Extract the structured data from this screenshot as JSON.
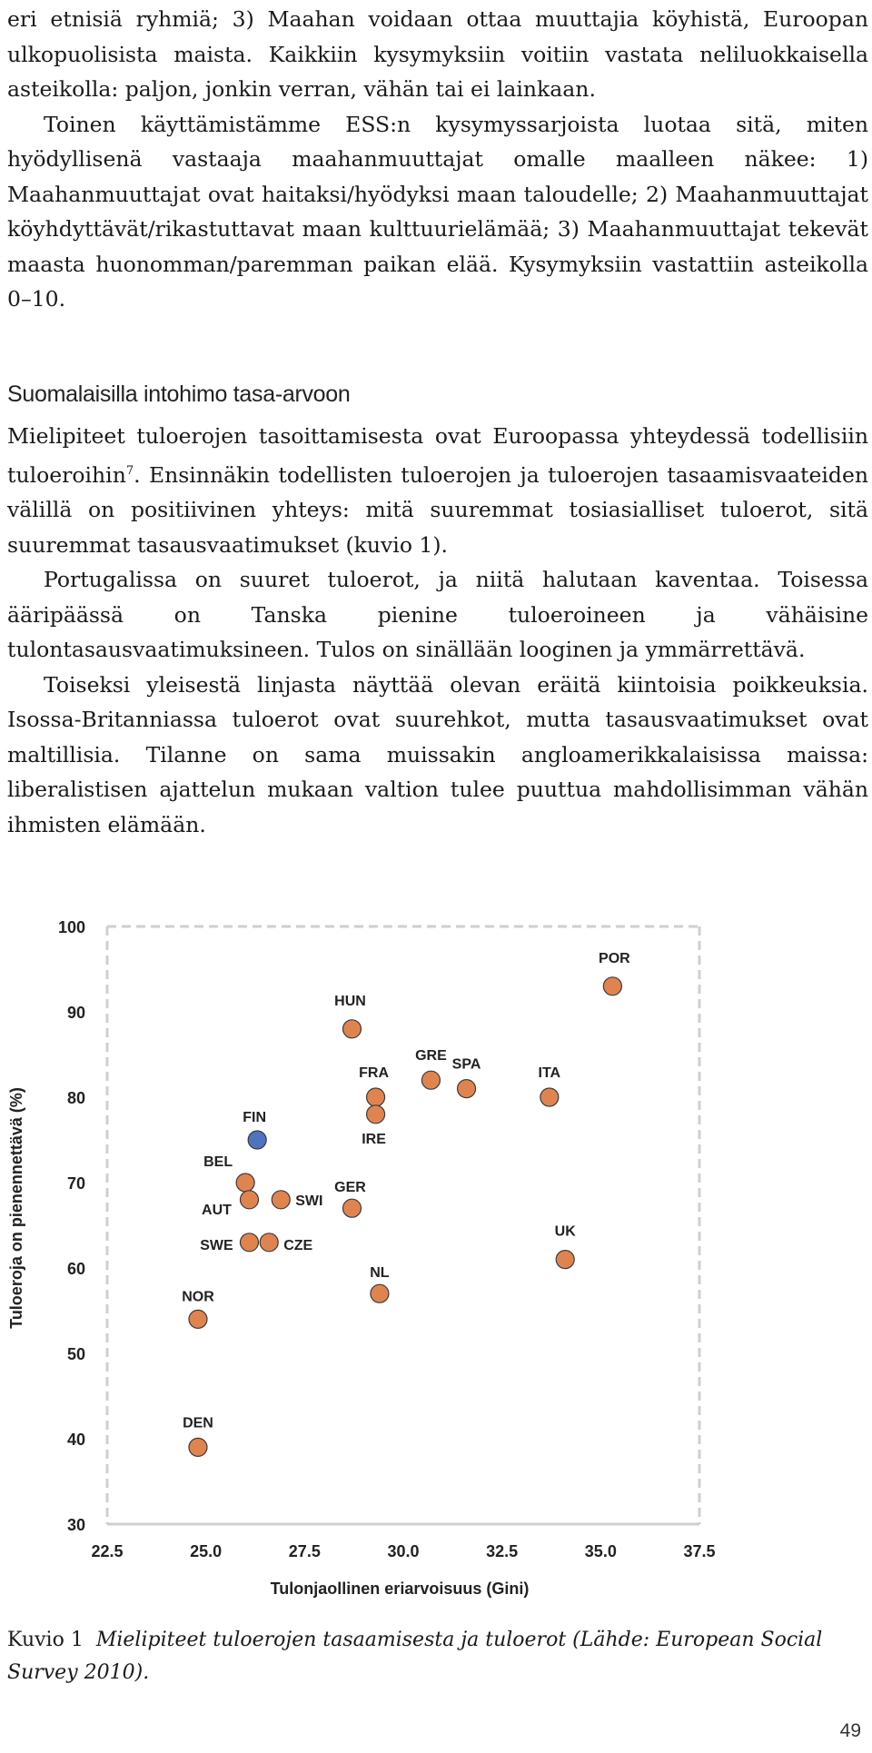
{
  "body_text": {
    "p1": "eri etnisiä ryhmiä; 3) Maahan voidaan ottaa muuttajia köyhistä, Euroopan ulkopuolisista maista. Kaikkiin kysymyksiin voitiin vastata neliluokkaisella asteikolla: paljon, jonkin verran, vähän tai ei lainkaan.",
    "p2": "Toinen käyttämistämme ESS:n kysymyssarjoista luotaa sitä, miten hyödyllisenä vastaaja maahanmuuttajat omalle maalleen näkee: 1) Maahanmuuttajat ovat haitaksi/hyödyksi maan taloudelle; 2) Maahanmuuttajat köyhdyttävät/rikastuttavat maan kulttuurielämää; 3) Maahanmuuttajat tekevät maasta huonomman/paremman paikan elää. Kysymyksiin vastattiin asteikolla 0–10."
  },
  "section": {
    "heading": "Suomalaisilla intohimo tasa-arvoon",
    "p1_a": "Mielipiteet tuloerojen tasoittamisesta ovat Euroopassa yhteydessä todellisiin tuloeroihin",
    "p1_sup": "7",
    "p1_b": ". Ensinnäkin todellisten tuloerojen ja tuloerojen tasaamisvaateiden välillä on positiivinen yhteys: mitä suuremmat tosiasialliset tuloerot, sitä suuremmat tasausvaatimukset (kuvio 1).",
    "p2": "Portugalissa on suuret tuloerot, ja niitä halutaan kaventaa. Toisessa ääripäässä on Tanska pienine tuloeroineen ja vähäisine tulontasausvaatimuksineen. Tulos on sinällään looginen ja ymmärrettävä.",
    "p3": "Toiseksi yleisestä linjasta näyttää olevan eräitä kiintoisia poikkeuksia. Isossa-Britanniassa tuloerot ovat suurehkot, mutta tasausvaatimukset ovat maltillisia. Tilanne on sama muissakin angloamerikkalaisissa maissa: liberalistisen ajattelun mukaan valtion tulee puuttua mahdollisimman vähän ihmisten elämään."
  },
  "chart_data": {
    "type": "scatter",
    "xlabel": "Tulonjaollinen eriarvoisuus (Gini)",
    "ylabel": "Tuloeroja on pienennettävä (%)",
    "xlim": [
      22.5,
      37.5
    ],
    "ylim": [
      30,
      100
    ],
    "x_ticks": [
      "22.5",
      "25.0",
      "27.5",
      "30.0",
      "32.5",
      "35.0",
      "37.5"
    ],
    "y_ticks": [
      "30",
      "40",
      "50",
      "60",
      "70",
      "80",
      "90",
      "100"
    ],
    "grid": false,
    "colors": {
      "default": "#e0844f",
      "highlight": "#4f73bf",
      "stroke": "#3a3a3a"
    },
    "points": [
      {
        "label": "POR",
        "x": 35.3,
        "y": 93
      },
      {
        "label": "HUN",
        "x": 28.7,
        "y": 88
      },
      {
        "label": "GRE",
        "x": 30.7,
        "y": 82
      },
      {
        "label": "SPA",
        "x": 31.6,
        "y": 81
      },
      {
        "label": "ITA",
        "x": 33.7,
        "y": 80
      },
      {
        "label": "FRA",
        "x": 29.3,
        "y": 80
      },
      {
        "label": "IRE",
        "x": 29.3,
        "y": 78
      },
      {
        "label": "FIN",
        "x": 26.3,
        "y": 75,
        "highlight": true
      },
      {
        "label": "BEL",
        "x": 26.0,
        "y": 70
      },
      {
        "label": "AUT",
        "x": 26.1,
        "y": 68
      },
      {
        "label": "SWI",
        "x": 26.9,
        "y": 68
      },
      {
        "label": "GER",
        "x": 28.7,
        "y": 67
      },
      {
        "label": "SWE",
        "x": 26.1,
        "y": 63
      },
      {
        "label": "CZE",
        "x": 26.6,
        "y": 63
      },
      {
        "label": "UK",
        "x": 34.1,
        "y": 61
      },
      {
        "label": "NL",
        "x": 29.4,
        "y": 57
      },
      {
        "label": "NOR",
        "x": 24.8,
        "y": 54
      },
      {
        "label": "DEN",
        "x": 24.8,
        "y": 39
      }
    ]
  },
  "caption": {
    "label": "Kuvio 1",
    "text": "Mielipiteet tuloerojen tasaamisesta ja tuloerot (Lähde: European Social Survey 2010)."
  },
  "page_number": "49"
}
